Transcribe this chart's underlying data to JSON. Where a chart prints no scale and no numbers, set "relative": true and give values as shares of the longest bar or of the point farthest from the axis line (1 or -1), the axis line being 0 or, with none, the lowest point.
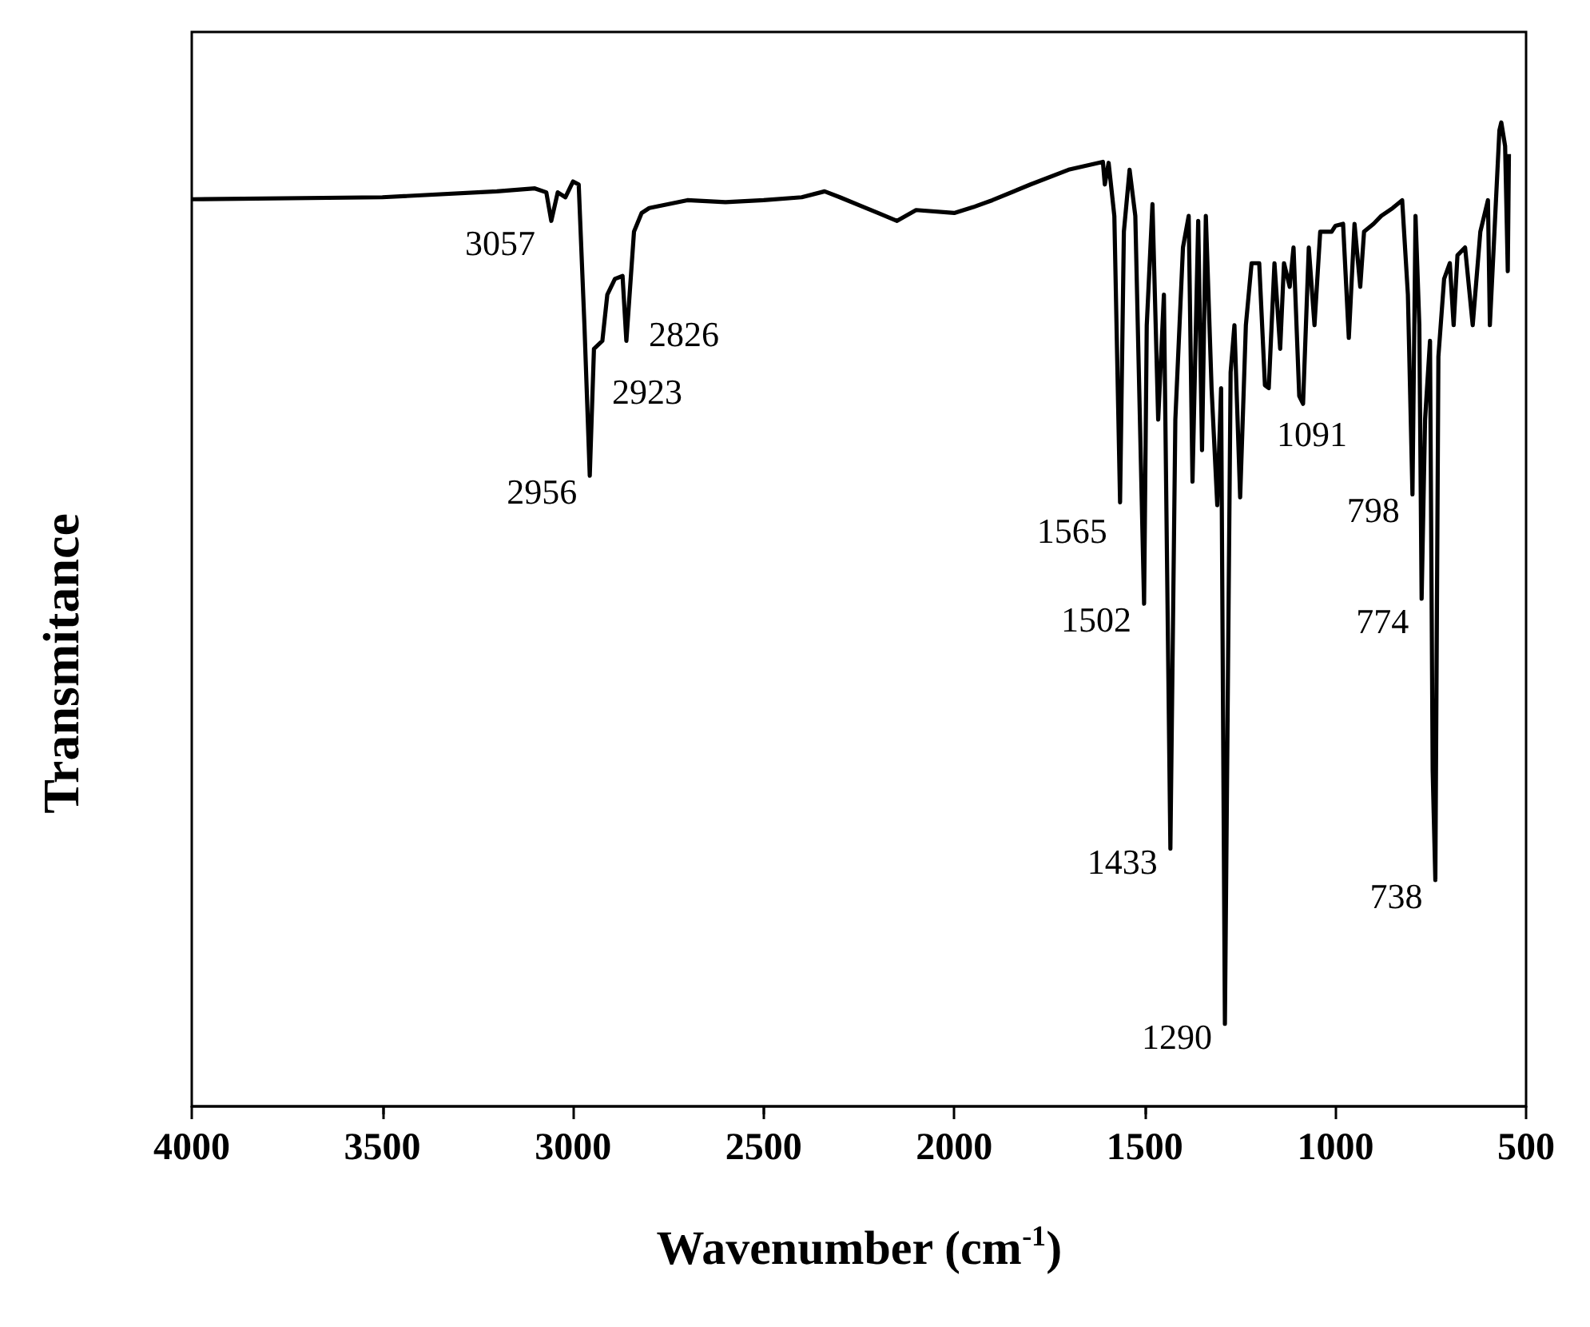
{
  "chart_data": {
    "type": "line",
    "xlabel": "Wavenumber (cm$^{-1}$)",
    "ylabel": "Transmitance",
    "relative": true,
    "xlim": [
      4000,
      500
    ],
    "xticks": [
      4000,
      3500,
      3000,
      2500,
      2000,
      1500,
      1000,
      500
    ],
    "grid": false,
    "marker": "none",
    "line_style": "solid",
    "series": [
      {
        "color": "#000000",
        "x": [
          4000,
          3500,
          3200,
          3100,
          3070,
          3057,
          3040,
          3020,
          3000,
          2985,
          2970,
          2956,
          2945,
          2923,
          2910,
          2890,
          2870,
          2860,
          2840,
          2820,
          2800,
          2700,
          2600,
          2500,
          2400,
          2340,
          2300,
          2200,
          2150,
          2100,
          2000,
          1950,
          1900,
          1800,
          1700,
          1610,
          1605,
          1595,
          1580,
          1565,
          1555,
          1540,
          1525,
          1502,
          1495,
          1480,
          1465,
          1450,
          1433,
          1420,
          1400,
          1385,
          1375,
          1360,
          1350,
          1340,
          1325,
          1310,
          1300,
          1290,
          1275,
          1265,
          1250,
          1235,
          1220,
          1200,
          1185,
          1175,
          1160,
          1145,
          1135,
          1120,
          1110,
          1095,
          1085,
          1070,
          1055,
          1040,
          1010,
          1000,
          980,
          965,
          950,
          935,
          925,
          900,
          880,
          850,
          825,
          810,
          798,
          790,
          780,
          774,
          765,
          752,
          745,
          738,
          730,
          715,
          700,
          690,
          680,
          660,
          640,
          620,
          600,
          595,
          585,
          570,
          565,
          555,
          548,
          545
        ],
        "values": [
          0.922,
          0.924,
          0.93,
          0.933,
          0.929,
          0.9,
          0.929,
          0.924,
          0.94,
          0.937,
          0.794,
          0.641,
          0.77,
          0.778,
          0.825,
          0.841,
          0.844,
          0.778,
          0.889,
          0.908,
          0.913,
          0.921,
          0.919,
          0.921,
          0.924,
          0.93,
          0.924,
          0.908,
          0.9,
          0.911,
          0.908,
          0.914,
          0.921,
          0.937,
          0.952,
          0.96,
          0.937,
          0.959,
          0.905,
          0.614,
          0.889,
          0.952,
          0.905,
          0.511,
          0.794,
          0.917,
          0.698,
          0.825,
          0.262,
          0.698,
          0.873,
          0.905,
          0.635,
          0.9,
          0.667,
          0.905,
          0.73,
          0.611,
          0.73,
          0.084,
          0.746,
          0.794,
          0.619,
          0.794,
          0.857,
          0.857,
          0.733,
          0.73,
          0.857,
          0.77,
          0.857,
          0.833,
          0.873,
          0.722,
          0.714,
          0.873,
          0.794,
          0.889,
          0.889,
          0.895,
          0.897,
          0.781,
          0.897,
          0.833,
          0.889,
          0.897,
          0.905,
          0.913,
          0.921,
          0.825,
          0.622,
          0.905,
          0.794,
          0.516,
          0.698,
          0.778,
          0.341,
          0.23,
          0.762,
          0.841,
          0.857,
          0.794,
          0.865,
          0.873,
          0.794,
          0.889,
          0.921,
          0.794,
          0.873,
          0.992,
          1.0,
          0.976,
          0.849,
          0.968
        ]
      }
    ],
    "annotations": [
      {
        "text": "3057",
        "x": 3057,
        "y": 0.9
      },
      {
        "text": "2956",
        "x": 2956,
        "y": 0.641
      },
      {
        "text": "2923",
        "x": 2923,
        "y": 0.778
      },
      {
        "text": "2826",
        "x": 2860,
        "y": 0.778
      },
      {
        "text": "1565",
        "x": 1565,
        "y": 0.614
      },
      {
        "text": "1502",
        "x": 1502,
        "y": 0.511
      },
      {
        "text": "1433",
        "x": 1433,
        "y": 0.262
      },
      {
        "text": "1290",
        "x": 1290,
        "y": 0.084
      },
      {
        "text": "1091",
        "x": 1095,
        "y": 0.722
      },
      {
        "text": "798",
        "x": 798,
        "y": 0.622
      },
      {
        "text": "774",
        "x": 774,
        "y": 0.516
      },
      {
        "text": "738",
        "x": 738,
        "y": 0.23
      }
    ]
  }
}
